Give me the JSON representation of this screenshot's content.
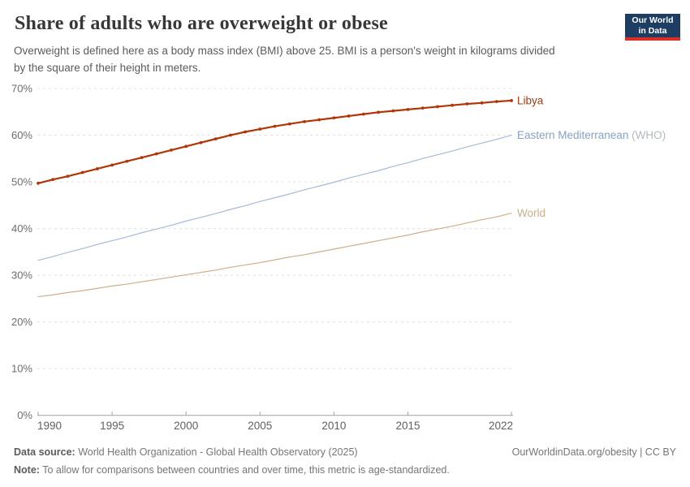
{
  "header": {
    "title": "Share of adults who are overweight or obese",
    "subtitle_line1": "Overweight is defined here as a body mass index (BMI) above 25. BMI is a person's weight in kilograms divided",
    "subtitle_line2": "by the square of their height in meters.",
    "logo": {
      "line1": "Our World",
      "line2": "in Data",
      "bg_color": "#1d3d63",
      "stripe_color": "#dc2e27"
    }
  },
  "footer": {
    "datasource_label": "Data source:",
    "datasource_text": " World Health Organization - Global Health Observatory (2025)",
    "note_label": "Note:",
    "note_text": " To allow for comparisons between countries and over time, this metric is age-standardized.",
    "link_text": "OurWorldinData.org/obesity | CC BY"
  },
  "style": {
    "grid_color": "#e0e0e0",
    "axis_color": "#a1a1a1",
    "ytick_color": "#6d6d6d",
    "xtick_color": "#5f5f5f"
  },
  "chart_data": {
    "type": "line",
    "title": "Share of adults who are overweight or obese",
    "xlabel": "",
    "ylabel": "",
    "xlim": [
      1990,
      2022
    ],
    "ylim": [
      0,
      70
    ],
    "grid": "horizontal-dashed",
    "legend_position": "right-end-labels",
    "y_ticks": [
      0,
      10,
      20,
      30,
      40,
      50,
      60,
      70
    ],
    "y_tick_suffix": "%",
    "x_ticks": [
      1990,
      1995,
      2000,
      2005,
      2010,
      2015,
      2022
    ],
    "years": [
      1990,
      1991,
      1992,
      1993,
      1994,
      1995,
      1996,
      1997,
      1998,
      1999,
      2000,
      2001,
      2002,
      2003,
      2004,
      2005,
      2006,
      2007,
      2008,
      2009,
      2010,
      2011,
      2012,
      2013,
      2014,
      2015,
      2016,
      2017,
      2018,
      2019,
      2020,
      2021,
      2022
    ],
    "series": [
      {
        "name": "Libya",
        "color": "#b13507",
        "line_width": 2.2,
        "markers": true,
        "label": {
          "text": "Libya",
          "color": "#b13507"
        },
        "values": [
          49.7,
          50.5,
          51.2,
          52.0,
          52.8,
          53.6,
          54.4,
          55.2,
          56.0,
          56.8,
          57.6,
          58.4,
          59.2,
          60.0,
          60.7,
          61.3,
          61.9,
          62.4,
          62.9,
          63.3,
          63.7,
          64.1,
          64.5,
          64.9,
          65.2,
          65.5,
          65.8,
          66.1,
          66.4,
          66.7,
          66.9,
          67.2,
          67.4
        ]
      },
      {
        "name": "Eastern Mediterranean (WHO)",
        "color": "#a7bad6",
        "line_width": 1.2,
        "markers": false,
        "label": {
          "text": "Eastern Mediterranean",
          "color": "#87a2c7",
          "suffix": " (WHO)",
          "suffix_color": "#b3b8be"
        },
        "values": [
          33.2,
          34.0,
          34.9,
          35.7,
          36.6,
          37.4,
          38.2,
          39.1,
          39.9,
          40.7,
          41.6,
          42.4,
          43.2,
          44.1,
          44.9,
          45.8,
          46.6,
          47.4,
          48.3,
          49.1,
          49.9,
          50.8,
          51.6,
          52.4,
          53.3,
          54.1,
          55.0,
          55.8,
          56.6,
          57.5,
          58.3,
          59.1,
          60.0
        ]
      },
      {
        "name": "World",
        "color": "#cdae8b",
        "line_width": 1.2,
        "markers": false,
        "label": {
          "text": "World",
          "color": "#cdae8b"
        },
        "values": [
          25.4,
          25.8,
          26.3,
          26.7,
          27.2,
          27.7,
          28.1,
          28.6,
          29.1,
          29.6,
          30.1,
          30.6,
          31.1,
          31.7,
          32.2,
          32.7,
          33.3,
          33.9,
          34.4,
          35.0,
          35.6,
          36.2,
          36.8,
          37.4,
          38.0,
          38.6,
          39.3,
          39.9,
          40.5,
          41.2,
          41.9,
          42.5,
          43.3
        ]
      }
    ]
  }
}
